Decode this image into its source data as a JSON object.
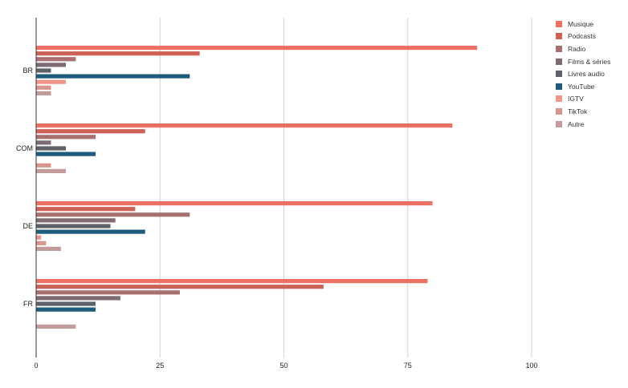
{
  "chart_data": {
    "type": "bar",
    "orientation": "horizontal",
    "categories": [
      "BR",
      "COM",
      "DE",
      "FR"
    ],
    "series": [
      {
        "name": "Musique",
        "color": "#ec7063",
        "values": [
          89,
          84,
          80,
          79
        ]
      },
      {
        "name": "Podcasts",
        "color": "#cd6155",
        "values": [
          33,
          22,
          20,
          58
        ]
      },
      {
        "name": "Radio",
        "color": "#a7706f",
        "values": [
          8,
          12,
          31,
          29
        ]
      },
      {
        "name": "Films & séries",
        "color": "#7d6a72",
        "values": [
          6,
          3,
          16,
          17
        ]
      },
      {
        "name": "Livres audio",
        "color": "#5d6168",
        "values": [
          3,
          6,
          15,
          12
        ]
      },
      {
        "name": "YouTube",
        "color": "#1f5b7a",
        "values": [
          31,
          12,
          22,
          12
        ]
      },
      {
        "name": "IGTV",
        "color": "#f1948a",
        "values": [
          6,
          0,
          1,
          0
        ]
      },
      {
        "name": "TikTok",
        "color": "#d9968c",
        "values": [
          3,
          3,
          2,
          0
        ]
      },
      {
        "name": "Autre",
        "color": "#c39b9b",
        "values": [
          3,
          6,
          5,
          8
        ]
      }
    ],
    "xlim": [
      0,
      100
    ],
    "xticks": [
      0,
      25,
      50,
      75,
      100
    ],
    "grid": true,
    "legend_position": "right",
    "title": "",
    "xlabel": "",
    "ylabel": ""
  }
}
